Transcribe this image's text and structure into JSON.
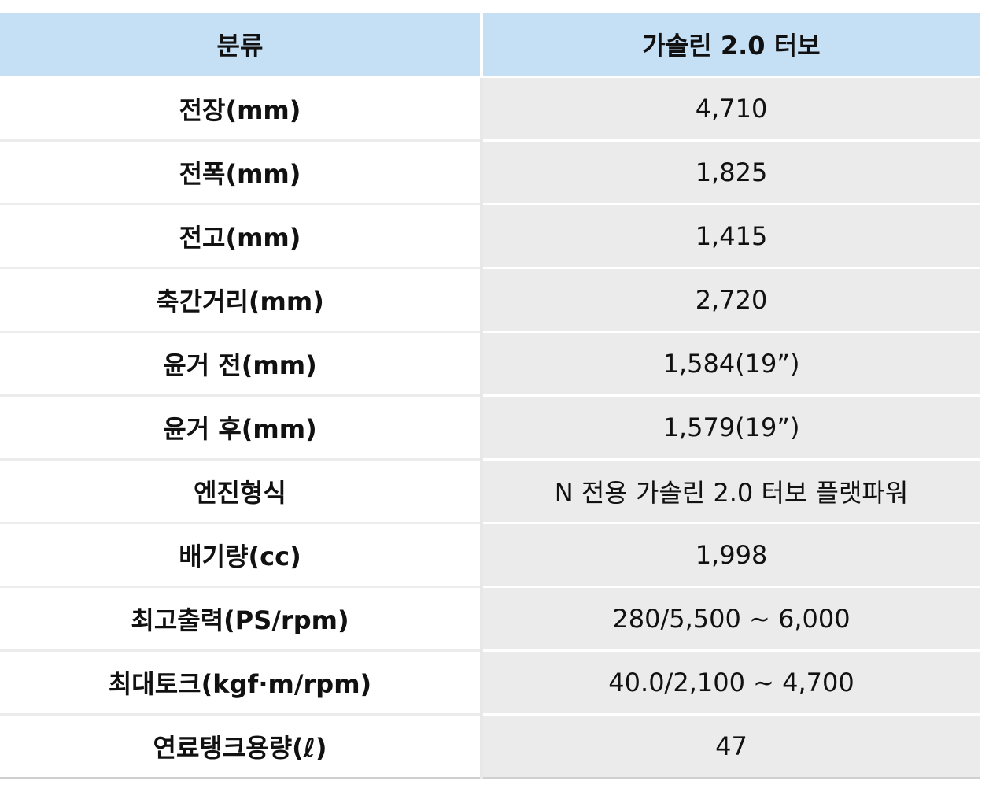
{
  "table": {
    "headers": [
      "분류",
      "가솔린 2.0 터보"
    ],
    "rows": [
      {
        "label": "전장(mm)",
        "value": "4,710"
      },
      {
        "label": "전폭(mm)",
        "value": "1,825"
      },
      {
        "label": "전고(mm)",
        "value": "1,415"
      },
      {
        "label": "축간거리(mm)",
        "value": "2,720"
      },
      {
        "label": "윤거 전(mm)",
        "value": "1,584(19”)"
      },
      {
        "label": "윤거 후(mm)",
        "value": "1,579(19”)"
      },
      {
        "label": "엔진형식",
        "value": "N 전용 가솔린 2.0 터보 플랫파워"
      },
      {
        "label": "배기량(cc)",
        "value": "1,998"
      },
      {
        "label": "최고출력(PS/rpm)",
        "value": "280/5,500 ~ 6,000"
      },
      {
        "label": "최대토크(kgf·m/rpm)",
        "value": "40.0/2,100 ~ 4,700"
      },
      {
        "label": "연료탱크용량(ℓ)",
        "value": "47"
      }
    ]
  },
  "colors": {
    "header_bg": "#c5dff5",
    "value_bg": "#ebebeb",
    "label_bg": "#ffffff"
  }
}
